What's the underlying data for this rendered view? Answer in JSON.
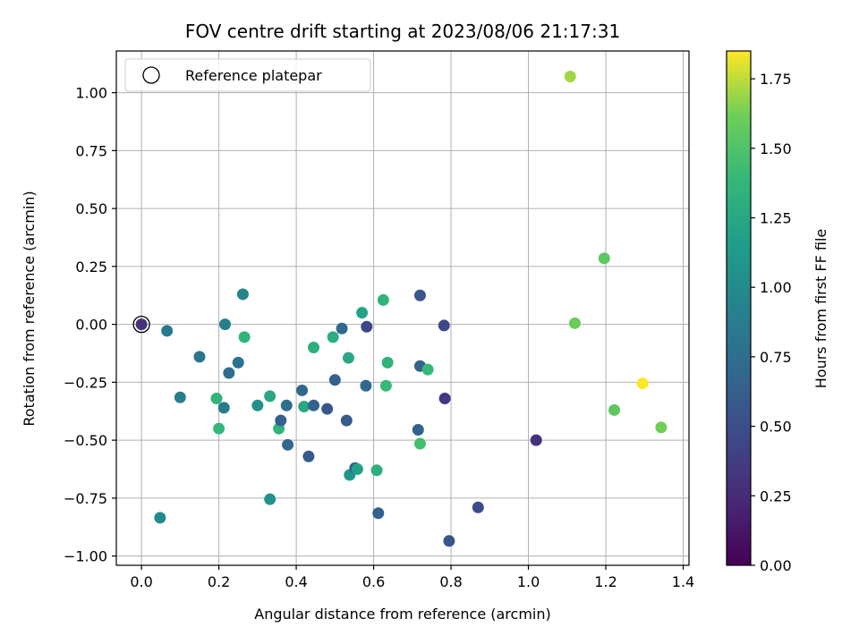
{
  "chart_data": {
    "type": "scatter",
    "title": "FOV centre drift starting at 2023/08/06 21:17:31",
    "xlabel": "Angular distance from reference (arcmin)",
    "ylabel": "Rotation from reference (arcmin)",
    "xlim": [
      -0.065,
      1.415
    ],
    "ylim": [
      -1.04,
      1.18
    ],
    "xticks": [
      0.0,
      0.2,
      0.4,
      0.6,
      0.8,
      1.0,
      1.2,
      1.4
    ],
    "xtick_labels": [
      "0.0",
      "0.2",
      "0.4",
      "0.6",
      "0.8",
      "1.0",
      "1.2",
      "1.4"
    ],
    "yticks": [
      1.0,
      0.75,
      0.5,
      0.25,
      0.0,
      -0.25,
      -0.5,
      -0.75,
      -1.0
    ],
    "ytick_labels": [
      "1.00",
      "0.75",
      "0.50",
      "0.25",
      "0.00",
      "−0.25",
      "−0.50",
      "−0.75",
      "−1.00"
    ],
    "grid": true,
    "legend": {
      "placement": "upper-left",
      "label": "Reference platepar"
    },
    "reference_point": {
      "x": 0.0,
      "y": 0.0
    },
    "colorbar": {
      "label": "Hours from first FF file",
      "colormap": "viridis",
      "range": [
        0.0,
        1.85
      ],
      "ticks": [
        0.0,
        0.25,
        0.5,
        0.75,
        1.0,
        1.25,
        1.5,
        1.75
      ],
      "tick_labels": [
        "0.00",
        "0.25",
        "0.50",
        "0.75",
        "1.00",
        "1.25",
        "1.50",
        "1.75"
      ]
    },
    "points": [
      {
        "x": 0.0,
        "y": 0.0,
        "c": 0.3
      },
      {
        "x": 0.066,
        "y": -0.028,
        "c": 0.85
      },
      {
        "x": 0.048,
        "y": -0.835,
        "c": 1.0
      },
      {
        "x": 0.1,
        "y": -0.315,
        "c": 0.9
      },
      {
        "x": 0.15,
        "y": -0.14,
        "c": 0.8
      },
      {
        "x": 0.194,
        "y": -0.32,
        "c": 1.35
      },
      {
        "x": 0.2,
        "y": -0.45,
        "c": 1.38
      },
      {
        "x": 0.213,
        "y": -0.36,
        "c": 0.85
      },
      {
        "x": 0.216,
        "y": 0.0,
        "c": 0.9
      },
      {
        "x": 0.226,
        "y": -0.21,
        "c": 0.75
      },
      {
        "x": 0.25,
        "y": -0.165,
        "c": 0.8
      },
      {
        "x": 0.262,
        "y": 0.13,
        "c": 0.95
      },
      {
        "x": 0.266,
        "y": -0.055,
        "c": 1.35
      },
      {
        "x": 0.3,
        "y": -0.35,
        "c": 1.05
      },
      {
        "x": 0.332,
        "y": -0.31,
        "c": 1.25
      },
      {
        "x": 0.332,
        "y": -0.755,
        "c": 1.05
      },
      {
        "x": 0.355,
        "y": -0.45,
        "c": 1.35
      },
      {
        "x": 0.36,
        "y": -0.415,
        "c": 0.65
      },
      {
        "x": 0.375,
        "y": -0.35,
        "c": 0.75
      },
      {
        "x": 0.378,
        "y": -0.52,
        "c": 0.7
      },
      {
        "x": 0.415,
        "y": -0.285,
        "c": 0.7
      },
      {
        "x": 0.42,
        "y": -0.355,
        "c": 1.25
      },
      {
        "x": 0.432,
        "y": -0.57,
        "c": 0.6
      },
      {
        "x": 0.445,
        "y": -0.35,
        "c": 0.65
      },
      {
        "x": 0.445,
        "y": -0.1,
        "c": 1.3
      },
      {
        "x": 0.48,
        "y": -0.365,
        "c": 0.55
      },
      {
        "x": 0.495,
        "y": -0.055,
        "c": 1.3
      },
      {
        "x": 0.5,
        "y": -0.24,
        "c": 0.65
      },
      {
        "x": 0.518,
        "y": -0.018,
        "c": 0.7
      },
      {
        "x": 0.53,
        "y": -0.415,
        "c": 0.6
      },
      {
        "x": 0.535,
        "y": -0.145,
        "c": 1.25
      },
      {
        "x": 0.538,
        "y": -0.65,
        "c": 1.1
      },
      {
        "x": 0.552,
        "y": -0.62,
        "c": 0.65
      },
      {
        "x": 0.558,
        "y": -0.625,
        "c": 1.2
      },
      {
        "x": 0.57,
        "y": 0.05,
        "c": 1.2
      },
      {
        "x": 0.58,
        "y": -0.265,
        "c": 0.7
      },
      {
        "x": 0.582,
        "y": -0.01,
        "c": 0.45
      },
      {
        "x": 0.608,
        "y": -0.63,
        "c": 1.3
      },
      {
        "x": 0.612,
        "y": -0.815,
        "c": 0.65
      },
      {
        "x": 0.625,
        "y": 0.105,
        "c": 1.35
      },
      {
        "x": 0.632,
        "y": -0.265,
        "c": 1.4
      },
      {
        "x": 0.636,
        "y": -0.165,
        "c": 1.35
      },
      {
        "x": 0.715,
        "y": -0.455,
        "c": 0.65
      },
      {
        "x": 0.72,
        "y": 0.125,
        "c": 0.55
      },
      {
        "x": 0.72,
        "y": -0.18,
        "c": 0.65
      },
      {
        "x": 0.72,
        "y": -0.515,
        "c": 1.45
      },
      {
        "x": 0.74,
        "y": -0.195,
        "c": 1.4
      },
      {
        "x": 0.782,
        "y": -0.005,
        "c": 0.45
      },
      {
        "x": 0.784,
        "y": -0.32,
        "c": 0.35
      },
      {
        "x": 0.795,
        "y": -0.935,
        "c": 0.55
      },
      {
        "x": 0.87,
        "y": -0.79,
        "c": 0.5
      },
      {
        "x": 1.02,
        "y": -0.5,
        "c": 0.3
      },
      {
        "x": 1.108,
        "y": 1.07,
        "c": 1.7
      },
      {
        "x": 1.12,
        "y": 0.005,
        "c": 1.6
      },
      {
        "x": 1.196,
        "y": 0.285,
        "c": 1.55
      },
      {
        "x": 1.222,
        "y": -0.37,
        "c": 1.55
      },
      {
        "x": 1.295,
        "y": -0.255,
        "c": 1.85
      },
      {
        "x": 1.343,
        "y": -0.445,
        "c": 1.62
      }
    ]
  }
}
